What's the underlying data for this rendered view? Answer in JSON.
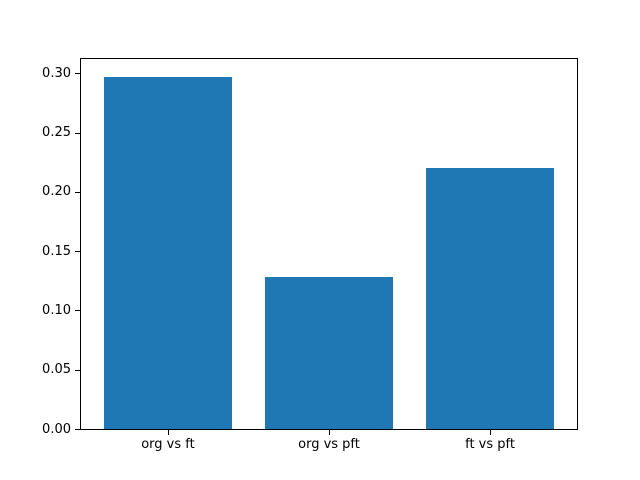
{
  "chart_data": {
    "type": "bar",
    "title": "",
    "categories": [
      "org vs ft",
      "org vs pft",
      "ft vs pft"
    ],
    "values": [
      0.297,
      0.128,
      0.22
    ],
    "xlabel": "",
    "ylabel": "",
    "ylim": [
      0,
      0.312
    ],
    "yticks": [
      0.0,
      0.05,
      0.1,
      0.15,
      0.2,
      0.25,
      0.3
    ],
    "ytick_labels": [
      "0.00",
      "0.05",
      "0.10",
      "0.15",
      "0.20",
      "0.25",
      "0.30"
    ],
    "bar_color": "#1f77b4",
    "axis_color": "#000000",
    "background_color": "#ffffff",
    "grid": false,
    "legend": false,
    "bar_width_fraction": 0.8,
    "x_units_span": 3.08,
    "x_left_pad_units": 0.54
  }
}
